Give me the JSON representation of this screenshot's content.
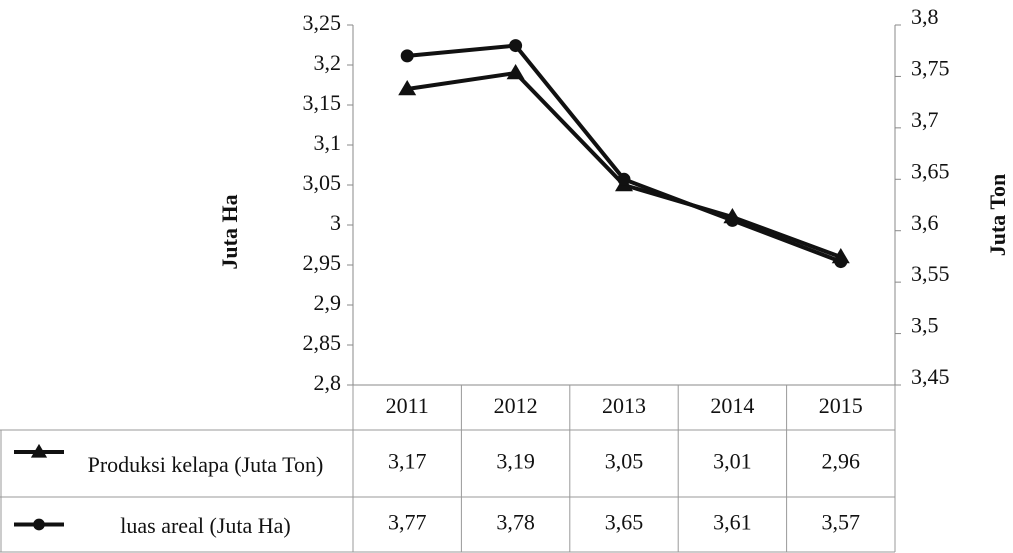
{
  "chart_data": {
    "type": "line",
    "y_label": "Juta Ha",
    "y2_label": "Juta Ton",
    "categories": [
      "2011",
      "2012",
      "2013",
      "2014",
      "2015"
    ],
    "series": [
      {
        "name": "Produksi kelapa (Juta Ton)",
        "color": "#111111",
        "marker": "triangle",
        "values": [
          3.17,
          3.19,
          3.05,
          3.01,
          2.96
        ],
        "value_labels": [
          "3,17",
          "3,19",
          "3,05",
          "3,01",
          "2,96"
        ]
      },
      {
        "name": "luas areal (Juta Ha)",
        "color": "#111111",
        "marker": "circle",
        "axis": "y2",
        "values": [
          3.77,
          3.78,
          3.65,
          3.61,
          3.57
        ],
        "value_labels": [
          "3,77",
          "3,78",
          "3,65",
          "3,61",
          "3,57"
        ]
      }
    ],
    "ylim": [
      2.8,
      3.25
    ],
    "yticks": [
      {
        "value": 2.8,
        "label": "2,8"
      },
      {
        "value": 2.85,
        "label": "2,85"
      },
      {
        "value": 2.9,
        "label": "2,9"
      },
      {
        "value": 2.95,
        "label": "2,95"
      },
      3,
      {
        "value": 3.05,
        "label": "3,05"
      },
      {
        "value": 3.1,
        "label": "3,1"
      },
      {
        "value": 3.15,
        "label": "3,15"
      },
      {
        "value": 3.2,
        "label": "3,2"
      },
      {
        "value": 3.25,
        "label": "3,25"
      }
    ],
    "y2lim": [
      3.45,
      3.8
    ],
    "y2ticks": [
      {
        "value": 3.45,
        "label": "3,45"
      },
      {
        "value": 3.5,
        "label": "3,5"
      },
      {
        "value": 3.55,
        "label": "3,55"
      },
      {
        "value": 3.6,
        "label": "3,6"
      },
      {
        "value": 3.65,
        "label": "3,65"
      },
      {
        "value": 3.7,
        "label": "3,7"
      },
      {
        "value": 3.75,
        "label": "3,75"
      },
      {
        "value": 3.8,
        "label": "3,8"
      }
    ],
    "data_table": true
  }
}
